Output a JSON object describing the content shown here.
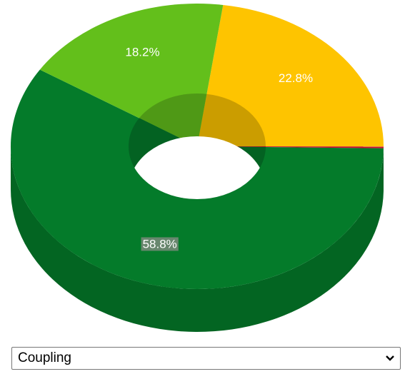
{
  "chart_data": {
    "type": "donut3d",
    "categories": [
      null,
      null,
      null,
      null
    ],
    "values": [
      22.8,
      0.2,
      58.8,
      18.2
    ],
    "value_labels": [
      "22.8%",
      null,
      "58.8%",
      "18.2%"
    ],
    "colors": [
      "#fec400",
      "#c8102e",
      "#047b2a",
      "#63bf1b"
    ]
  },
  "dropdown": {
    "selected": "Coupling"
  }
}
